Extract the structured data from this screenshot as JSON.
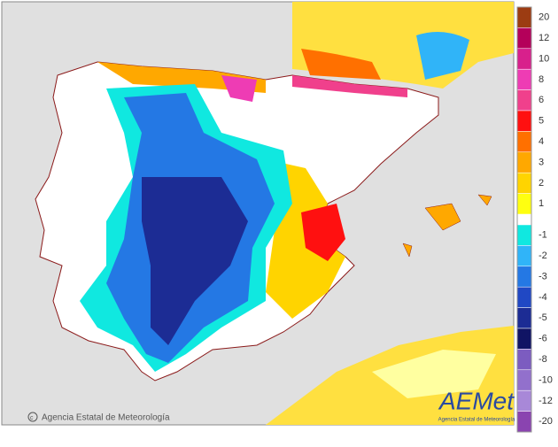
{
  "legend": {
    "entries": [
      {
        "label": "20",
        "color": "#9c3c12"
      },
      {
        "label": "12",
        "color": "#b4005a"
      },
      {
        "label": "10",
        "color": "#d8208c"
      },
      {
        "label": "8",
        "color": "#ee3cb4"
      },
      {
        "label": "6",
        "color": "#f0408c"
      },
      {
        "label": "5",
        "color": "#ff1010"
      },
      {
        "label": "4",
        "color": "#ff7000"
      },
      {
        "label": "3",
        "color": "#ffa800"
      },
      {
        "label": "2",
        "color": "#ffd400"
      },
      {
        "label": "1",
        "color": "#ffff10"
      },
      {
        "label": "-1",
        "color": "#10e8e0"
      },
      {
        "label": "-2",
        "color": "#30b4f8"
      },
      {
        "label": "-3",
        "color": "#2478e4"
      },
      {
        "label": "-4",
        "color": "#2048c4"
      },
      {
        "label": "-5",
        "color": "#1c2c94"
      },
      {
        "label": "-6",
        "color": "#101464"
      },
      {
        "label": "-8",
        "color": "#7c5cc0"
      },
      {
        "label": "-10",
        "color": "#9270cc"
      },
      {
        "label": "-12",
        "color": "#a888d8"
      },
      {
        "label": "-20",
        "color": "#8a44b0"
      }
    ]
  },
  "credit": "Agencia Estatal de Meteorología",
  "logo": {
    "name": "AEMet",
    "subtitle": "Agencia Estatal de Meteorología"
  }
}
